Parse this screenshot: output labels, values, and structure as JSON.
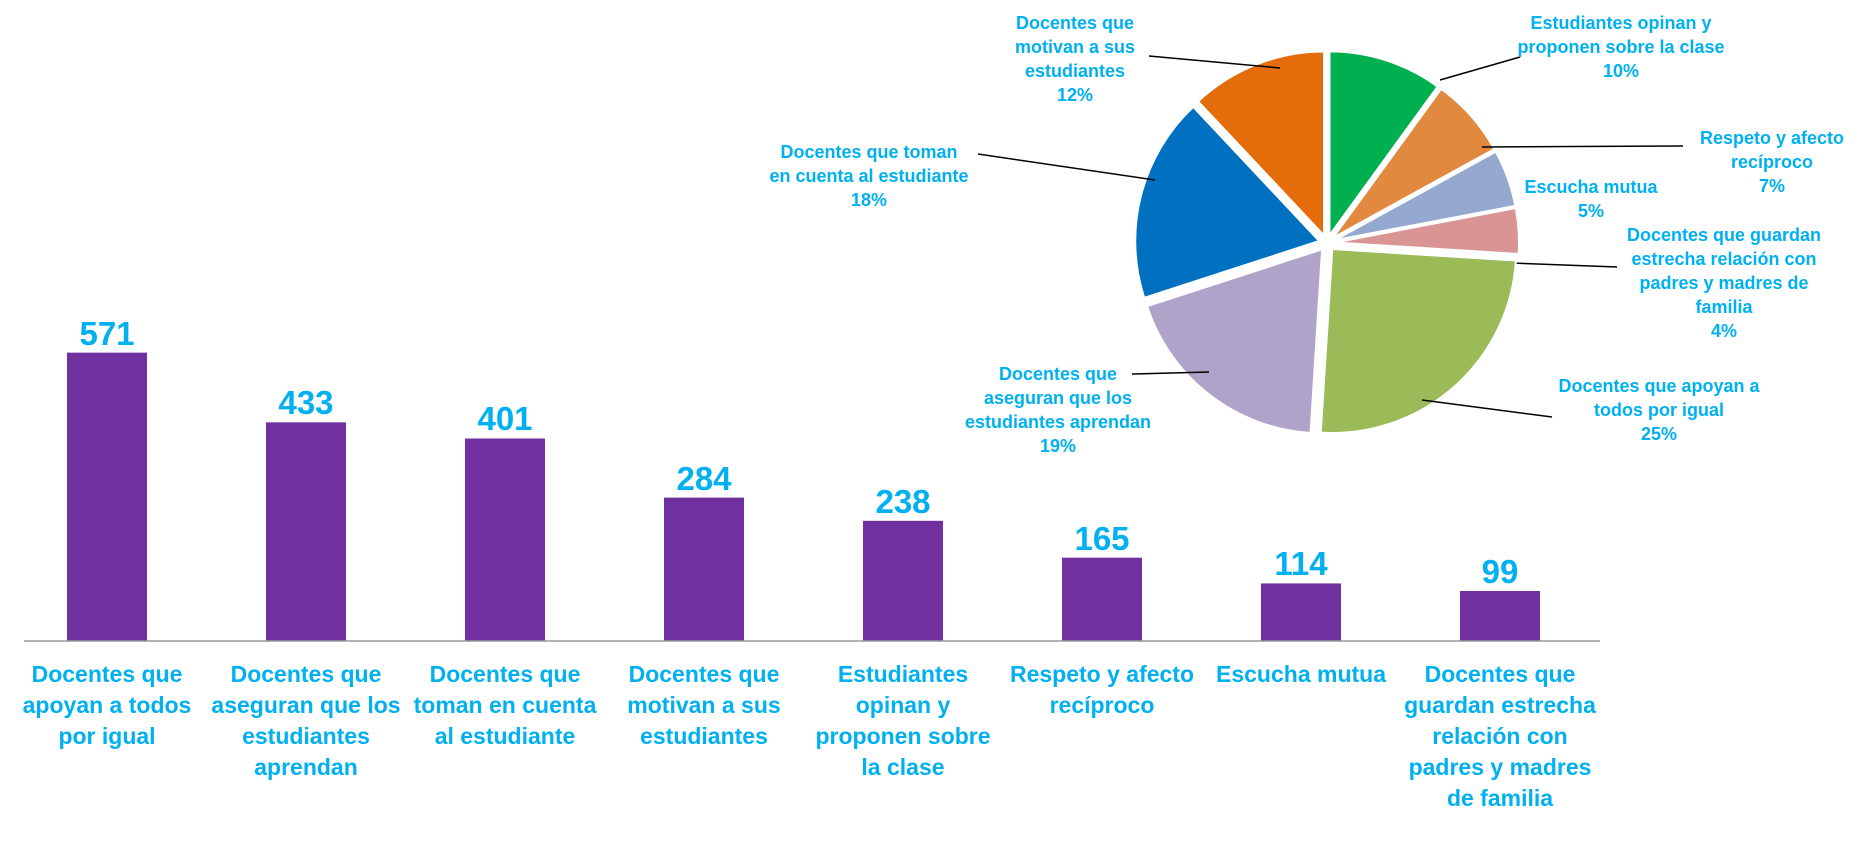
{
  "chart_data": [
    {
      "type": "bar",
      "categories": [
        "Docentes que apoyan a todos por igual",
        "Docentes que aseguran que los estudiantes aprendan",
        "Docentes que toman en cuenta al estudiante",
        "Docentes que motivan a sus estudiantes",
        "Estudiantes opinan y proponen sobre la clase",
        "Respeto y afecto recíproco",
        "Escucha mutua",
        "Docentes que guardan estrecha relación con padres y madres de familia"
      ],
      "values": [
        571,
        433,
        401,
        284,
        238,
        165,
        114,
        99
      ],
      "color": "#7030a0",
      "ylim": [
        0,
        600
      ]
    },
    {
      "type": "pie",
      "categories": [
        "Estudiantes opinan y proponen sobre la clase",
        "Respeto y afecto recíproco",
        "Escucha mutua",
        "Docentes que guardan estrecha relación con padres y madres de familia",
        "Docentes que apoyan a todos por igual",
        "Docentes que aseguran que los estudiantes aprendan",
        "Docentes que toman en cuenta al estudiante",
        "Docentes que motivan a sus estudiantes"
      ],
      "values": [
        10,
        7,
        5,
        4,
        25,
        19,
        18,
        12
      ],
      "value_labels": [
        "10%",
        "7%",
        "5%",
        "4%",
        "25%",
        "19%",
        "18%",
        "12%"
      ],
      "colors": [
        "#00b050",
        "#e0893f",
        "#95a8d0",
        "#d99594",
        "#9bbb59",
        "#b0a3c9",
        "#0070c0",
        "#e46c0a"
      ]
    }
  ]
}
